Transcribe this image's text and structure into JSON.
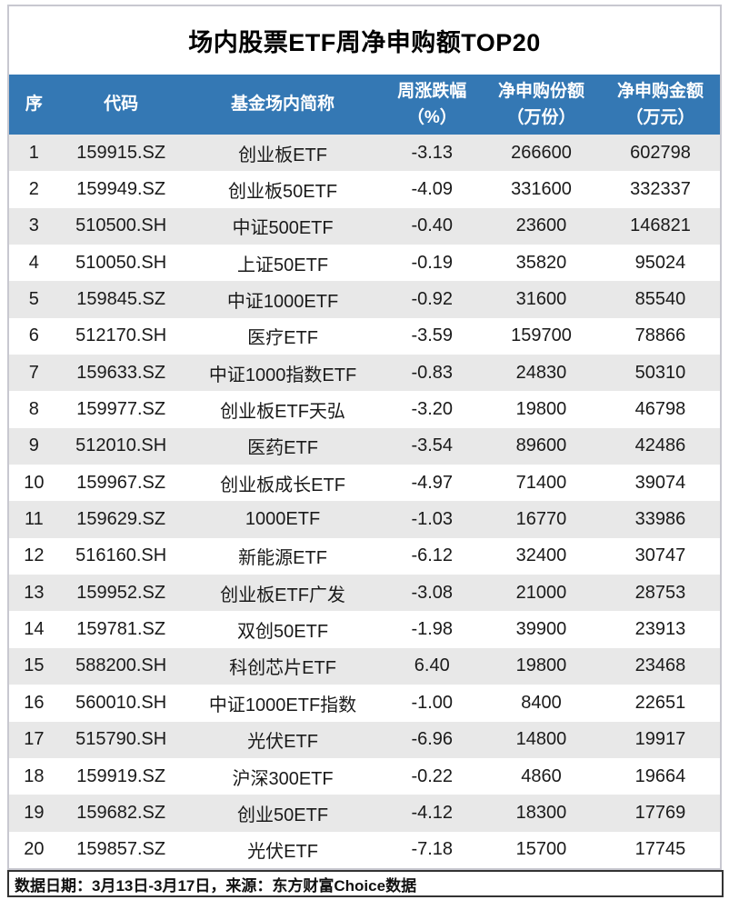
{
  "title": "场内股票ETF周净申购额TOP20",
  "table": {
    "columns": [
      {
        "line1": "序",
        "line2": ""
      },
      {
        "line1": "代码",
        "line2": ""
      },
      {
        "line1": "基金场内简称",
        "line2": ""
      },
      {
        "line1": "周涨跌幅",
        "line2": "（%）"
      },
      {
        "line1": "净申购份额",
        "line2": "（万份）"
      },
      {
        "line1": "净申购金额",
        "line2": "（万元）"
      }
    ],
    "rows": [
      {
        "rank": "1",
        "code": "159915.SZ",
        "name": "创业板ETF",
        "change": "-3.13",
        "shares": "266600",
        "amount": "602798"
      },
      {
        "rank": "2",
        "code": "159949.SZ",
        "name": "创业板50ETF",
        "change": "-4.09",
        "shares": "331600",
        "amount": "332337"
      },
      {
        "rank": "3",
        "code": "510500.SH",
        "name": "中证500ETF",
        "change": "-0.40",
        "shares": "23600",
        "amount": "146821"
      },
      {
        "rank": "4",
        "code": "510050.SH",
        "name": "上证50ETF",
        "change": "-0.19",
        "shares": "35820",
        "amount": "95024"
      },
      {
        "rank": "5",
        "code": "159845.SZ",
        "name": "中证1000ETF",
        "change": "-0.92",
        "shares": "31600",
        "amount": "85540"
      },
      {
        "rank": "6",
        "code": "512170.SH",
        "name": "医疗ETF",
        "change": "-3.59",
        "shares": "159700",
        "amount": "78866"
      },
      {
        "rank": "7",
        "code": "159633.SZ",
        "name": "中证1000指数ETF",
        "change": "-0.83",
        "shares": "24830",
        "amount": "50310"
      },
      {
        "rank": "8",
        "code": "159977.SZ",
        "name": "创业板ETF天弘",
        "change": "-3.20",
        "shares": "19800",
        "amount": "46798"
      },
      {
        "rank": "9",
        "code": "512010.SH",
        "name": "医药ETF",
        "change": "-3.54",
        "shares": "89600",
        "amount": "42486"
      },
      {
        "rank": "10",
        "code": "159967.SZ",
        "name": "创业板成长ETF",
        "change": "-4.97",
        "shares": "71400",
        "amount": "39074"
      },
      {
        "rank": "11",
        "code": "159629.SZ",
        "name": "1000ETF",
        "change": "-1.03",
        "shares": "16770",
        "amount": "33986"
      },
      {
        "rank": "12",
        "code": "516160.SH",
        "name": "新能源ETF",
        "change": "-6.12",
        "shares": "32400",
        "amount": "30747"
      },
      {
        "rank": "13",
        "code": "159952.SZ",
        "name": "创业板ETF广发",
        "change": "-3.08",
        "shares": "21000",
        "amount": "28753"
      },
      {
        "rank": "14",
        "code": "159781.SZ",
        "name": "双创50ETF",
        "change": "-1.98",
        "shares": "39900",
        "amount": "23913"
      },
      {
        "rank": "15",
        "code": "588200.SH",
        "name": "科创芯片ETF",
        "change": "6.40",
        "shares": "19800",
        "amount": "23468"
      },
      {
        "rank": "16",
        "code": "560010.SH",
        "name": "中证1000ETF指数",
        "change": "-1.00",
        "shares": "8400",
        "amount": "22651"
      },
      {
        "rank": "17",
        "code": "515790.SH",
        "name": "光伏ETF",
        "change": "-6.96",
        "shares": "14800",
        "amount": "19917"
      },
      {
        "rank": "18",
        "code": "159919.SZ",
        "name": "沪深300ETF",
        "change": "-0.22",
        "shares": "4860",
        "amount": "19664"
      },
      {
        "rank": "19",
        "code": "159682.SZ",
        "name": "创业50ETF",
        "change": "-4.12",
        "shares": "18300",
        "amount": "17769"
      },
      {
        "rank": "20",
        "code": "159857.SZ",
        "name": "光伏ETF",
        "change": "-7.18",
        "shares": "15700",
        "amount": "17745"
      }
    ]
  },
  "footer": {
    "text": "数据日期：3月13日-3月17日，来源：东方财富Choice数据"
  },
  "colors": {
    "header_bg": "#3478b4",
    "stripe": "#e8e8e8",
    "panel_border": "#c8c8d0",
    "footer_border": "#333333",
    "row_text": "#1a1a1a"
  },
  "chart_data": {
    "type": "table",
    "title": "场内股票ETF周净申购额TOP20",
    "columns": [
      "序",
      "代码",
      "基金场内简称",
      "周涨跌幅（%）",
      "净申购份额（万份）",
      "净申购金额（万元）"
    ],
    "rows": [
      [
        1,
        "159915.SZ",
        "创业板ETF",
        -3.13,
        266600,
        602798
      ],
      [
        2,
        "159949.SZ",
        "创业板50ETF",
        -4.09,
        331600,
        332337
      ],
      [
        3,
        "510500.SH",
        "中证500ETF",
        -0.4,
        23600,
        146821
      ],
      [
        4,
        "510050.SH",
        "上证50ETF",
        -0.19,
        35820,
        95024
      ],
      [
        5,
        "159845.SZ",
        "中证1000ETF",
        -0.92,
        31600,
        85540
      ],
      [
        6,
        "512170.SH",
        "医疗ETF",
        -3.59,
        159700,
        78866
      ],
      [
        7,
        "159633.SZ",
        "中证1000指数ETF",
        -0.83,
        24830,
        50310
      ],
      [
        8,
        "159977.SZ",
        "创业板ETF天弘",
        -3.2,
        19800,
        46798
      ],
      [
        9,
        "512010.SH",
        "医药ETF",
        -3.54,
        89600,
        42486
      ],
      [
        10,
        "159967.SZ",
        "创业板成长ETF",
        -4.97,
        71400,
        39074
      ],
      [
        11,
        "159629.SZ",
        "1000ETF",
        -1.03,
        16770,
        33986
      ],
      [
        12,
        "516160.SH",
        "新能源ETF",
        -6.12,
        32400,
        30747
      ],
      [
        13,
        "159952.SZ",
        "创业板ETF广发",
        -3.08,
        21000,
        28753
      ],
      [
        14,
        "159781.SZ",
        "双创50ETF",
        -1.98,
        39900,
        23913
      ],
      [
        15,
        "588200.SH",
        "科创芯片ETF",
        6.4,
        19800,
        23468
      ],
      [
        16,
        "560010.SH",
        "中证1000ETF指数",
        -1.0,
        8400,
        22651
      ],
      [
        17,
        "515790.SH",
        "光伏ETF",
        -6.96,
        14800,
        19917
      ],
      [
        18,
        "159919.SZ",
        "沪深300ETF",
        -0.22,
        4860,
        19664
      ],
      [
        19,
        "159682.SZ",
        "创业50ETF",
        -4.12,
        18300,
        17769
      ],
      [
        20,
        "159857.SZ",
        "光伏ETF",
        -7.18,
        15700,
        17745
      ]
    ],
    "footnote": "数据日期：3月13日-3月17日，来源：东方财富Choice数据",
    "layout": {
      "striped_rows": true,
      "header_style": "blue-bar",
      "rank_order": "desc by 净申购金额"
    }
  }
}
